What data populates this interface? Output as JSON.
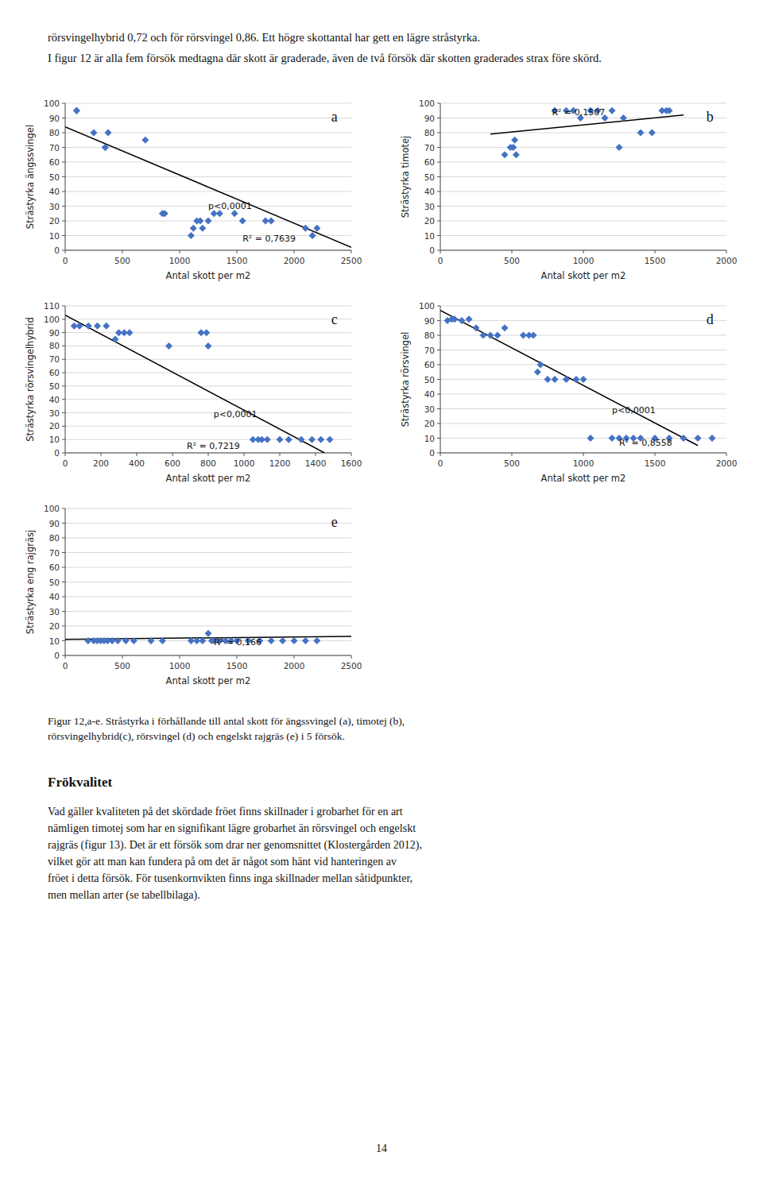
{
  "header": [
    "rörsvingelhybrid 0,72 och för rörsvingel 0,86. Ett högre skottantal har gett en lägre stråstyrka.",
    "I figur 12 är alla fem försök medtagna där skott är graderade, även de två försök där skotten graderades strax före skörd."
  ],
  "chart_data": [
    {
      "type": "scatter",
      "title": "a",
      "xlabel": "Antal skott per m2",
      "ylabel": "Strästyrka ängssvingel",
      "xlim": [
        0,
        2500
      ],
      "ylim": [
        0,
        100
      ],
      "xticks": [
        0,
        500,
        1000,
        1500,
        2000,
        2500
      ],
      "yticks": [
        0,
        10,
        20,
        30,
        40,
        50,
        60,
        70,
        80,
        90,
        100
      ],
      "grid": "y",
      "series": [
        {
          "type": "scatter",
          "color": "#4472C4",
          "marker": "diamond",
          "x": [
            100,
            100,
            250,
            350,
            350,
            375,
            700,
            850,
            870,
            1100,
            1120,
            1150,
            1180,
            1200,
            1250,
            1300,
            1350,
            1480,
            1550,
            1750,
            1800,
            2100,
            2160,
            2200
          ],
          "values": [
            95,
            95,
            80,
            70,
            70,
            80,
            75,
            25,
            25,
            10,
            15,
            20,
            20,
            15,
            20,
            25,
            25,
            25,
            20,
            20,
            20,
            15,
            10,
            15
          ]
        },
        {
          "type": "line",
          "color": "black",
          "line_style": "solid",
          "x": [
            0,
            2500
          ],
          "values": [
            84,
            2
          ]
        }
      ],
      "annotations": [
        {
          "text": "R² = 0,7639",
          "x": 1550,
          "y": 6
        },
        {
          "text": "p<0,0001",
          "x": 1250,
          "y": 28
        }
      ]
    },
    {
      "type": "scatter",
      "title": "b",
      "xlabel": "Antal skott per m2",
      "ylabel": "Strästyrka timotej",
      "xlim": [
        0,
        2000
      ],
      "ylim": [
        0,
        100
      ],
      "xticks": [
        0,
        500,
        1000,
        1500,
        2000
      ],
      "yticks": [
        0,
        10,
        20,
        30,
        40,
        50,
        60,
        70,
        80,
        90,
        100
      ],
      "grid": "y",
      "series": [
        {
          "type": "scatter",
          "color": "#4472C4",
          "marker": "diamond",
          "x": [
            450,
            490,
            510,
            520,
            530,
            800,
            880,
            930,
            980,
            1050,
            1100,
            1150,
            1200,
            1250,
            1280,
            1400,
            1480,
            1550,
            1580,
            1600
          ],
          "values": [
            65,
            70,
            70,
            75,
            65,
            95,
            95,
            95,
            90,
            95,
            95,
            90,
            95,
            70,
            90,
            80,
            80,
            95,
            95,
            95
          ]
        },
        {
          "type": "line",
          "color": "black",
          "line_style": "solid",
          "x": [
            350,
            1700
          ],
          "values": [
            79,
            92
          ]
        }
      ],
      "annotations": [
        {
          "text": "R² = 0,1507",
          "x": 780,
          "y": 92
        }
      ]
    },
    {
      "type": "scatter",
      "title": "c",
      "xlabel": "Antal skott per m2",
      "ylabel": "Strästyrka rörsvingelhybrid",
      "xlim": [
        0,
        1600
      ],
      "ylim": [
        0,
        110
      ],
      "xticks": [
        0,
        200,
        400,
        600,
        800,
        1000,
        1200,
        1400,
        1600
      ],
      "yticks": [
        0,
        10,
        20,
        30,
        40,
        50,
        60,
        70,
        80,
        90,
        100,
        110
      ],
      "grid": "y",
      "series": [
        {
          "type": "scatter",
          "color": "#4472C4",
          "marker": "diamond",
          "x": [
            50,
            80,
            130,
            180,
            230,
            280,
            300,
            330,
            360,
            580,
            790,
            760,
            800,
            1050,
            1080,
            1100,
            1130,
            1200,
            1250,
            1320,
            1380,
            1430,
            1480
          ],
          "values": [
            95,
            95,
            95,
            95,
            95,
            85,
            90,
            90,
            90,
            80,
            90,
            90,
            80,
            10,
            10,
            10,
            10,
            10,
            10,
            10,
            10,
            10,
            10
          ]
        },
        {
          "type": "line",
          "color": "black",
          "line_style": "solid",
          "x": [
            0,
            1450
          ],
          "values": [
            103,
            0
          ]
        }
      ],
      "annotations": [
        {
          "text": "R² = 0,7219",
          "x": 680,
          "y": 3
        },
        {
          "text": "p<0,0001",
          "x": 830,
          "y": 27
        }
      ]
    },
    {
      "type": "scatter",
      "title": "d",
      "xlabel": "Antal skott per m2",
      "ylabel": "Strästyrka rörsvingel",
      "xlim": [
        0,
        2000
      ],
      "ylim": [
        0,
        100
      ],
      "xticks": [
        0,
        500,
        1000,
        1500,
        2000
      ],
      "yticks": [
        0,
        10,
        20,
        30,
        40,
        50,
        60,
        70,
        80,
        90,
        100
      ],
      "grid": "y",
      "series": [
        {
          "type": "scatter",
          "color": "#4472C4",
          "marker": "diamond",
          "x": [
            50,
            80,
            100,
            150,
            200,
            250,
            300,
            350,
            400,
            450,
            580,
            620,
            650,
            680,
            700,
            750,
            800,
            880,
            950,
            1000,
            1050,
            1200,
            1250,
            1300,
            1350,
            1400,
            1500,
            1600,
            1700,
            1800,
            1900
          ],
          "values": [
            90,
            91,
            91,
            90,
            91,
            85,
            80,
            80,
            80,
            85,
            80,
            80,
            80,
            55,
            60,
            50,
            50,
            50,
            50,
            50,
            10,
            10,
            10,
            10,
            10,
            10,
            10,
            10,
            10,
            10,
            10
          ]
        },
        {
          "type": "line",
          "color": "black",
          "line_style": "solid",
          "x": [
            0,
            1800
          ],
          "values": [
            97,
            5
          ]
        }
      ],
      "annotations": [
        {
          "text": "R² = 0,8558",
          "x": 1250,
          "y": 5
        },
        {
          "text": "p<0,0001",
          "x": 1200,
          "y": 27
        }
      ]
    },
    {
      "type": "scatter",
      "title": "e",
      "xlabel": "Antal skott per m2",
      "ylabel": "Strästyrka eng rajgräsj",
      "xlim": [
        0,
        2500
      ],
      "ylim": [
        0,
        100
      ],
      "xticks": [
        0,
        500,
        1000,
        1500,
        2000,
        2500
      ],
      "yticks": [
        0,
        10,
        20,
        30,
        40,
        50,
        60,
        70,
        80,
        90,
        100
      ],
      "grid": "y",
      "series": [
        {
          "type": "scatter",
          "color": "#4472C4",
          "marker": "diamond",
          "x": [
            200,
            250,
            280,
            310,
            340,
            370,
            410,
            460,
            530,
            600,
            750,
            850,
            1100,
            1150,
            1200,
            1250,
            1280,
            1300,
            1350,
            1400,
            1450,
            1500,
            1600,
            1700,
            1800,
            1900,
            2000,
            2100,
            2200
          ],
          "values": [
            10,
            10,
            10,
            10,
            10,
            10,
            10,
            10,
            10,
            10,
            10,
            10,
            10,
            10,
            10,
            15,
            10,
            10,
            10,
            10,
            10,
            10,
            10,
            10,
            10,
            10,
            10,
            10,
            10
          ]
        },
        {
          "type": "line",
          "color": "black",
          "line_style": "solid",
          "x": [
            0,
            2500
          ],
          "values": [
            11,
            13
          ]
        }
      ],
      "annotations": [
        {
          "text": "R² = 0,166",
          "x": 1300,
          "y": 7
        }
      ]
    }
  ],
  "caption": "Figur 12,a-e. Stråstyrka i förhållande till antal skott för ängssvingel (a), timotej (b),\nrörsvingelhybrid(c), rörsvingel (d) och engelskt rajgräs (e) i 5 försök.",
  "section_title": "Frökvalitet",
  "body": "Vad gäller kvaliteten på det skördade fröet finns skillnader i grobarhet för en art\nnämligen timotej som har en signifikant lägre grobarhet än rörsvingel och engelskt\nrajgräs (figur 13). Det är ett försök som drar ner genomsnittet (Klostergården 2012),\nvilket gör att man kan fundera på om det är något som hänt vid hanteringen av\nfröet i detta försök. För tusenkornvikten finns inga skillnader mellan såtidpunkter,\nmen mellan arter (se tabellbilaga).",
  "page_number": "14"
}
